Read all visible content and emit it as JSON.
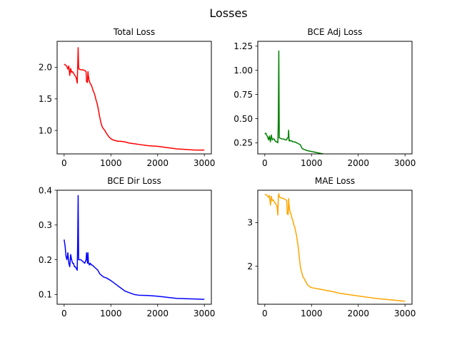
{
  "figure": {
    "title": "Losses"
  },
  "chart_data": [
    {
      "type": "line",
      "title": "Total Loss",
      "xlabel": "",
      "ylabel": "",
      "xlim": [
        -150,
        3150
      ],
      "ylim": [
        0.63,
        2.41
      ],
      "xticks": [
        0,
        1000,
        2000,
        3000
      ],
      "yticks": [
        1.0,
        1.5,
        2.0
      ],
      "xtick_labels": [
        "0",
        "1000",
        "2000",
        "3000"
      ],
      "ytick_labels": [
        "1.0",
        "1.5",
        "2.0"
      ],
      "grid": false,
      "series": [
        {
          "color": "#ff0000",
          "x": [
            0,
            20,
            40,
            60,
            80,
            100,
            120,
            140,
            160,
            180,
            200,
            220,
            240,
            260,
            280,
            290,
            300,
            310,
            320,
            360,
            400,
            440,
            470,
            480,
            500,
            510,
            520,
            530,
            540,
            560,
            580,
            600,
            620,
            640,
            660,
            680,
            700,
            720,
            740,
            760,
            780,
            800,
            820,
            840,
            860,
            880,
            900,
            920,
            940,
            960,
            1000,
            1050,
            1100,
            1150,
            1200,
            1300,
            1400,
            1500,
            1600,
            1800,
            2000,
            2200,
            2400,
            2600,
            2800,
            3000
          ],
          "values": [
            2.05,
            2.04,
            2.03,
            2.01,
            1.97,
            2.02,
            1.87,
            1.98,
            1.92,
            1.93,
            1.91,
            1.88,
            1.86,
            1.83,
            1.75,
            2.0,
            2.31,
            2.0,
            1.97,
            1.96,
            1.96,
            1.95,
            1.93,
            1.77,
            1.76,
            1.93,
            1.86,
            1.81,
            1.78,
            1.74,
            1.72,
            1.68,
            1.63,
            1.6,
            1.55,
            1.49,
            1.44,
            1.38,
            1.3,
            1.22,
            1.15,
            1.09,
            1.05,
            1.03,
            1.01,
            0.99,
            0.96,
            0.94,
            0.92,
            0.9,
            0.87,
            0.85,
            0.84,
            0.83,
            0.83,
            0.82,
            0.8,
            0.79,
            0.78,
            0.76,
            0.75,
            0.73,
            0.71,
            0.7,
            0.69,
            0.69
          ]
        }
      ]
    },
    {
      "type": "line",
      "title": "BCE Adj Loss",
      "xlabel": "",
      "ylabel": "",
      "xlim": [
        -150,
        3150
      ],
      "ylim": [
        0.135,
        1.3
      ],
      "xticks": [
        0,
        1000,
        2000,
        3000
      ],
      "yticks": [
        0.25,
        0.5,
        0.75,
        1.0,
        1.25
      ],
      "xtick_labels": [
        "0",
        "1000",
        "2000",
        "3000"
      ],
      "ytick_labels": [
        "0.25",
        "0.50",
        "0.75",
        "1.00",
        "1.25"
      ],
      "grid": false,
      "series": [
        {
          "color": "#008000",
          "x": [
            0,
            20,
            40,
            60,
            80,
            100,
            120,
            140,
            160,
            180,
            200,
            220,
            240,
            260,
            280,
            290,
            300,
            310,
            320,
            360,
            400,
            440,
            470,
            480,
            500,
            510,
            520,
            530,
            540,
            560,
            580,
            600,
            640,
            680,
            720,
            760,
            800,
            850,
            900,
            1000,
            1100,
            1200,
            1300,
            1400,
            1500,
            1600,
            1800,
            2000,
            2200,
            2400,
            2600,
            2800,
            3000
          ],
          "values": [
            0.34,
            0.35,
            0.33,
            0.31,
            0.28,
            0.32,
            0.26,
            0.33,
            0.28,
            0.29,
            0.29,
            0.27,
            0.26,
            0.26,
            0.25,
            0.5,
            1.2,
            0.3,
            0.3,
            0.29,
            0.29,
            0.28,
            0.28,
            0.3,
            0.3,
            0.38,
            0.27,
            0.28,
            0.27,
            0.27,
            0.27,
            0.26,
            0.26,
            0.25,
            0.24,
            0.23,
            0.19,
            0.18,
            0.17,
            0.16,
            0.15,
            0.14,
            0.13,
            0.12,
            0.11,
            0.1,
            0.1,
            0.095,
            0.093,
            0.09,
            0.088,
            0.087,
            0.086
          ]
        }
      ]
    },
    {
      "type": "line",
      "title": "BCE Dir Loss",
      "xlabel": "",
      "ylabel": "",
      "xlim": [
        -150,
        3150
      ],
      "ylim": [
        0.072,
        0.4
      ],
      "xticks": [
        0,
        1000,
        2000,
        3000
      ],
      "yticks": [
        0.1,
        0.2,
        0.3,
        0.4
      ],
      "xtick_labels": [
        "0",
        "1000",
        "2000",
        "3000"
      ],
      "ytick_labels": [
        "0.1",
        "0.2",
        "0.3",
        "0.4"
      ],
      "grid": false,
      "series": [
        {
          "color": "#0000ff",
          "x": [
            0,
            20,
            40,
            60,
            80,
            100,
            120,
            140,
            160,
            180,
            200,
            220,
            240,
            260,
            280,
            290,
            300,
            310,
            320,
            360,
            400,
            440,
            470,
            480,
            500,
            510,
            520,
            530,
            540,
            560,
            580,
            600,
            640,
            680,
            720,
            760,
            800,
            850,
            900,
            1000,
            1100,
            1200,
            1300,
            1400,
            1500,
            1600,
            1800,
            2000,
            2200,
            2400,
            2600,
            2800,
            3000
          ],
          "values": [
            0.258,
            0.24,
            0.21,
            0.2,
            0.22,
            0.19,
            0.18,
            0.215,
            0.2,
            0.19,
            0.19,
            0.18,
            0.18,
            0.175,
            0.17,
            0.25,
            0.385,
            0.2,
            0.2,
            0.2,
            0.195,
            0.19,
            0.2,
            0.22,
            0.19,
            0.22,
            0.19,
            0.19,
            0.185,
            0.19,
            0.185,
            0.185,
            0.18,
            0.175,
            0.17,
            0.16,
            0.155,
            0.15,
            0.148,
            0.14,
            0.13,
            0.12,
            0.11,
            0.105,
            0.1,
            0.098,
            0.097,
            0.095,
            0.092,
            0.089,
            0.088,
            0.087,
            0.086
          ]
        }
      ]
    },
    {
      "type": "line",
      "title": "MAE Loss",
      "xlabel": "",
      "ylabel": "",
      "xlim": [
        -150,
        3150
      ],
      "ylim": [
        1.13,
        3.74
      ],
      "xticks": [
        0,
        1000,
        2000,
        3000
      ],
      "yticks": [
        2,
        3
      ],
      "xtick_labels": [
        "0",
        "1000",
        "2000",
        "3000"
      ],
      "ytick_labels": [
        "2",
        "3"
      ],
      "grid": false,
      "series": [
        {
          "color": "#ffa500",
          "x": [
            0,
            20,
            40,
            60,
            80,
            100,
            120,
            140,
            160,
            180,
            200,
            220,
            240,
            260,
            280,
            290,
            300,
            310,
            320,
            360,
            400,
            440,
            470,
            480,
            500,
            510,
            520,
            530,
            540,
            560,
            580,
            600,
            620,
            640,
            660,
            680,
            700,
            720,
            740,
            760,
            780,
            800,
            820,
            840,
            860,
            880,
            900,
            920,
            940,
            960,
            1000,
            1050,
            1100,
            1150,
            1200,
            1300,
            1400,
            1500,
            1600,
            1800,
            2000,
            2200,
            2400,
            2600,
            2800,
            3000
          ],
          "values": [
            3.65,
            3.64,
            3.63,
            3.6,
            3.58,
            3.62,
            3.4,
            3.6,
            3.5,
            3.52,
            3.48,
            3.45,
            3.42,
            3.38,
            3.17,
            3.6,
            3.66,
            3.6,
            3.58,
            3.56,
            3.55,
            3.53,
            3.5,
            3.2,
            3.18,
            3.55,
            3.4,
            3.3,
            3.25,
            3.2,
            3.1,
            3.05,
            2.95,
            2.9,
            2.8,
            2.7,
            2.55,
            2.4,
            2.2,
            2.0,
            1.9,
            1.82,
            1.75,
            1.72,
            1.68,
            1.64,
            1.6,
            1.57,
            1.55,
            1.53,
            1.51,
            1.5,
            1.49,
            1.48,
            1.47,
            1.45,
            1.43,
            1.41,
            1.38,
            1.35,
            1.32,
            1.29,
            1.26,
            1.24,
            1.22,
            1.2
          ]
        }
      ]
    }
  ]
}
